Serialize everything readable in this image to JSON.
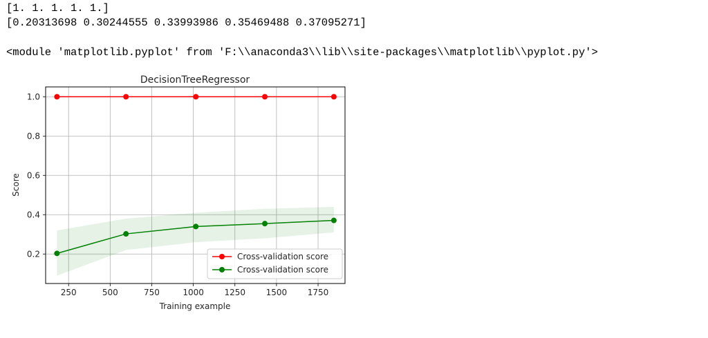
{
  "output": {
    "line1": "[1. 1. 1. 1. 1.]",
    "line2": "[0.20313698 0.30244555 0.33993986 0.35469488 0.37095271]",
    "line3": "<module 'matplotlib.pyplot' from 'F:\\\\anaconda3\\\\lib\\\\site-packages\\\\matplotlib\\\\pyplot.py'>"
  },
  "chart_data": {
    "type": "line",
    "title": "DecisionTreeRegressor",
    "xlabel": "Training example",
    "ylabel": "Score",
    "xlim": [
      112,
      1912
    ],
    "ylim": [
      0.05,
      1.05
    ],
    "xticks": [
      250,
      500,
      750,
      1000,
      1250,
      1500,
      1750
    ],
    "yticks": [
      0.2,
      0.4,
      0.6,
      0.8,
      1.0
    ],
    "ytick_labels": [
      "0.2",
      "0.4",
      "0.6",
      "0.8",
      "1.0"
    ],
    "grid": true,
    "legend_position": "lower-right",
    "x": [
      180,
      595,
      1015,
      1430,
      1845
    ],
    "series": [
      {
        "name": "Cross-validation score",
        "color": "#ff0000",
        "values": [
          1.0,
          1.0,
          1.0,
          1.0,
          1.0
        ],
        "band_low": [
          1.0,
          1.0,
          1.0,
          1.0,
          1.0
        ],
        "band_high": [
          1.0,
          1.0,
          1.0,
          1.0,
          1.0
        ]
      },
      {
        "name": "Cross-validation score",
        "color": "#008000",
        "values": [
          0.20313698,
          0.30244555,
          0.33993986,
          0.35469488,
          0.37095271
        ],
        "band_low": [
          0.09,
          0.22,
          0.26,
          0.28,
          0.31
        ],
        "band_high": [
          0.32,
          0.38,
          0.41,
          0.43,
          0.44
        ]
      }
    ]
  }
}
